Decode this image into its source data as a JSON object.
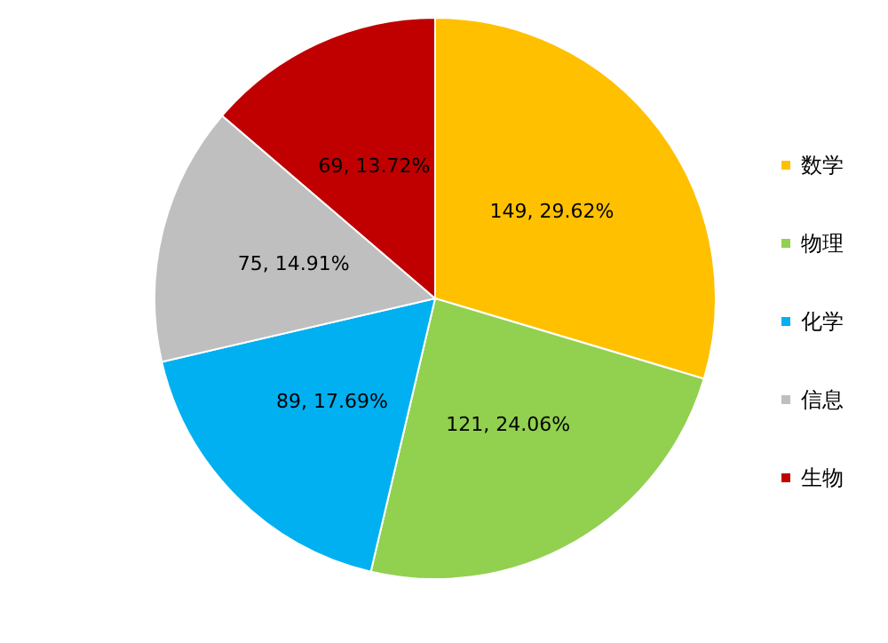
{
  "chart_data": {
    "type": "pie",
    "categories": [
      "数学",
      "物理",
      "化学",
      "信息",
      "生物"
    ],
    "values": [
      149,
      121,
      89,
      75,
      69
    ],
    "colors": [
      "#ffc000",
      "#92d050",
      "#00b0f0",
      "#bfbfbf",
      "#c00000"
    ],
    "value_labels": [
      "149, 29.62%",
      "121, 24.06%",
      "89, 17.69%",
      "75, 14.91%",
      "69, 13.72%"
    ],
    "legend": "right"
  }
}
